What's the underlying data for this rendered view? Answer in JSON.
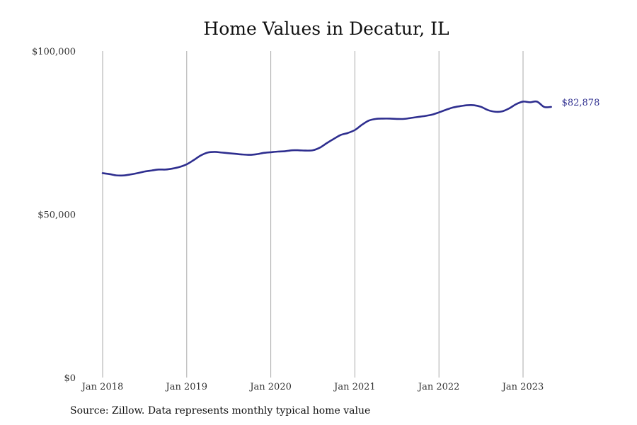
{
  "chart_data": {
    "type": "line",
    "title": "Home Values in Decatur, IL",
    "xlabel": "",
    "ylabel": "",
    "ylim": [
      0,
      100000
    ],
    "xlim": [
      "2018-01",
      "2023-05"
    ],
    "y_ticks": [
      {
        "value": 0,
        "label": "$0"
      },
      {
        "value": 50000,
        "label": "$50,000"
      },
      {
        "value": 100000,
        "label": "$100,000"
      }
    ],
    "x_ticks": [
      {
        "value": "2018-01",
        "label": "Jan 2018"
      },
      {
        "value": "2019-01",
        "label": "Jan 2019"
      },
      {
        "value": "2020-01",
        "label": "Jan 2020"
      },
      {
        "value": "2021-01",
        "label": "Jan 2021"
      },
      {
        "value": "2022-01",
        "label": "Jan 2022"
      },
      {
        "value": "2023-01",
        "label": "Jan 2023"
      }
    ],
    "grid": {
      "vertical": true,
      "horizontal": false
    },
    "legend": "none",
    "color": "#2e2e8f",
    "end_label": "$82,878",
    "series": [
      {
        "x": [
          "2018-01",
          "2018-02",
          "2018-03",
          "2018-04",
          "2018-05",
          "2018-06",
          "2018-07",
          "2018-08",
          "2018-09",
          "2018-10",
          "2018-11",
          "2018-12",
          "2019-01",
          "2019-02",
          "2019-03",
          "2019-04",
          "2019-05",
          "2019-06",
          "2019-07",
          "2019-08",
          "2019-09",
          "2019-10",
          "2019-11",
          "2019-12",
          "2020-01",
          "2020-02",
          "2020-03",
          "2020-04",
          "2020-05",
          "2020-06",
          "2020-07",
          "2020-08",
          "2020-09",
          "2020-10",
          "2020-11",
          "2020-12",
          "2021-01",
          "2021-02",
          "2021-03",
          "2021-04",
          "2021-05",
          "2021-06",
          "2021-07",
          "2021-08",
          "2021-09",
          "2021-10",
          "2021-11",
          "2021-12",
          "2022-01",
          "2022-02",
          "2022-03",
          "2022-04",
          "2022-05",
          "2022-06",
          "2022-07",
          "2022-08",
          "2022-09",
          "2022-10",
          "2022-11",
          "2022-12",
          "2023-01",
          "2023-02",
          "2023-03",
          "2023-04",
          "2023-05"
        ],
        "values": [
          62600,
          62300,
          61900,
          61900,
          62200,
          62600,
          63100,
          63400,
          63700,
          63700,
          64000,
          64500,
          65300,
          66600,
          68000,
          68900,
          69100,
          68900,
          68700,
          68500,
          68300,
          68200,
          68400,
          68800,
          69000,
          69200,
          69300,
          69600,
          69600,
          69500,
          69600,
          70400,
          71800,
          73100,
          74300,
          74900,
          75800,
          77400,
          78700,
          79200,
          79300,
          79300,
          79200,
          79200,
          79500,
          79800,
          80100,
          80500,
          81200,
          82000,
          82700,
          83100,
          83400,
          83400,
          82900,
          81900,
          81400,
          81500,
          82400,
          83700,
          84500,
          84300,
          84500,
          82878,
          82878
        ]
      }
    ]
  },
  "source_note": "Source: Zillow. Data represents monthly typical home value"
}
